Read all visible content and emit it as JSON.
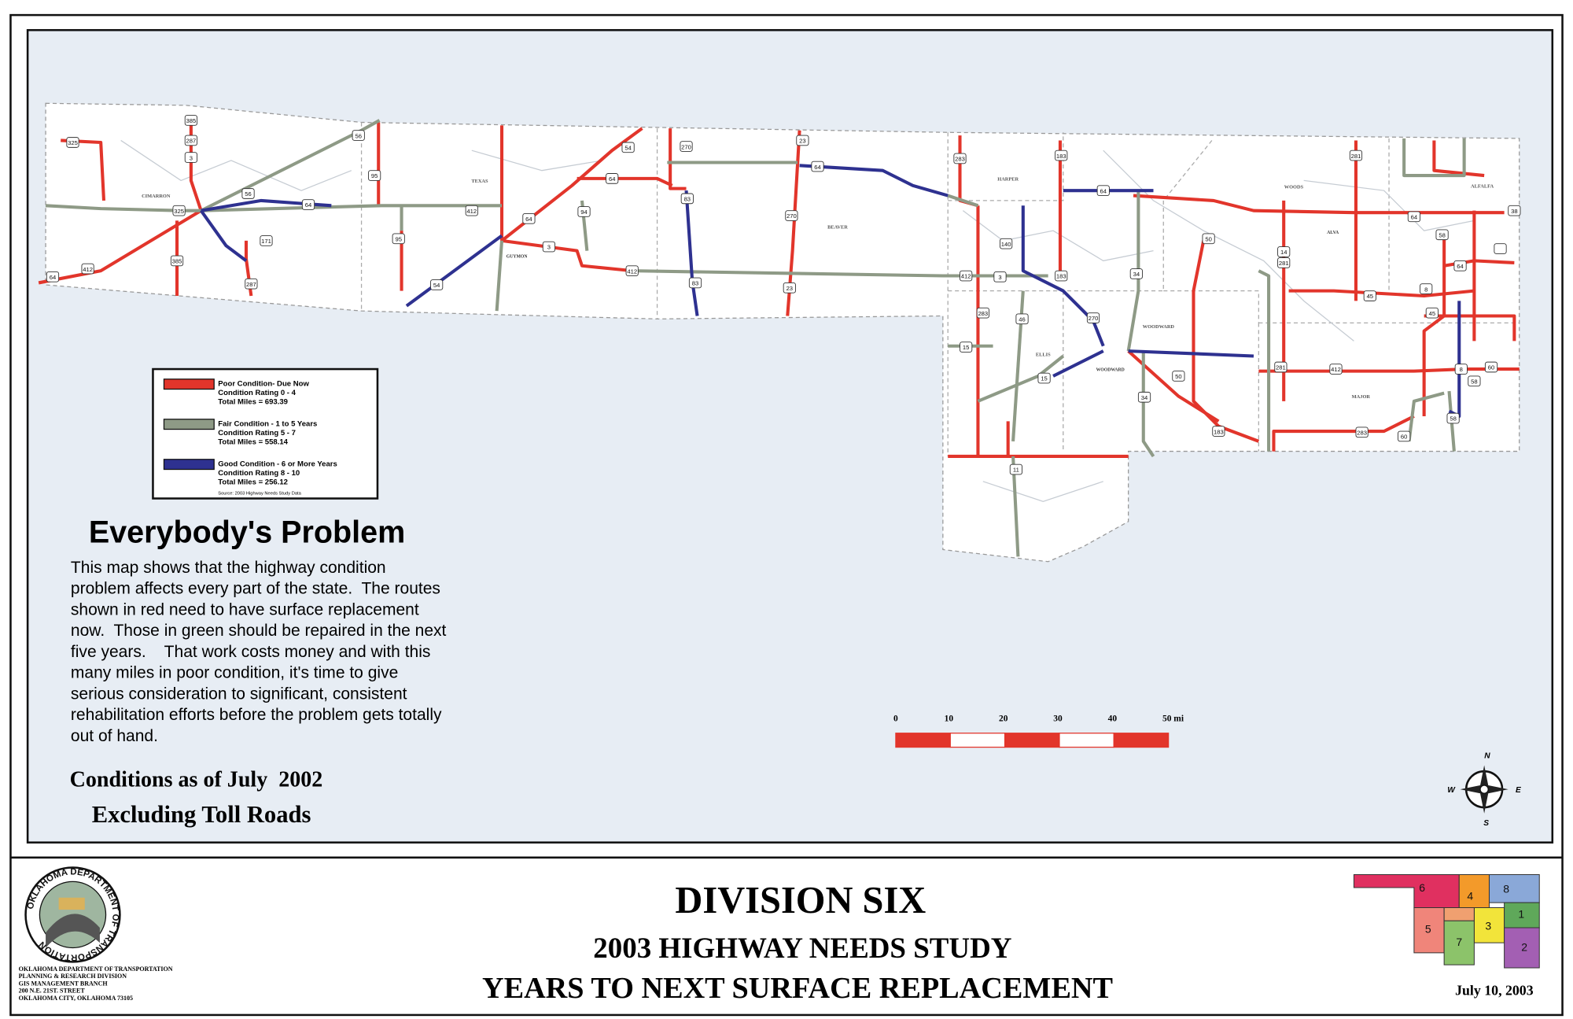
{
  "map": {
    "counties": [
      "CIMARRON",
      "TEXAS",
      "BEAVER",
      "HARPER",
      "WOODS",
      "ALFALFA",
      "ELLIS",
      "WOODWARD",
      "MAJOR"
    ],
    "towns": [
      "GUYMON",
      "ALVA",
      "WOODWARD"
    ],
    "shields": [
      "385",
      "287",
      "3",
      "56",
      "95",
      "64",
      "412",
      "56",
      "171",
      "385",
      "287",
      "325",
      "64",
      "412",
      "325",
      "95",
      "54",
      "64",
      "3",
      "94",
      "64",
      "54",
      "270",
      "83",
      "83",
      "412",
      "270",
      "23",
      "64",
      "23",
      "283",
      "183",
      "64",
      "412",
      "3",
      "140",
      "283",
      "15",
      "46",
      "183",
      "270",
      "34",
      "15",
      "50",
      "50",
      "34",
      "183",
      "14",
      "281",
      "281",
      "64",
      "58",
      "64",
      "8",
      "45",
      "45",
      "281",
      "412",
      "60",
      "58",
      "8",
      "58",
      "60",
      "283",
      "11",
      "38"
    ]
  },
  "legend": {
    "items": [
      {
        "label": "Poor Condition- Due Now",
        "rating": "Condition Rating 0 - 4",
        "miles": "Total Miles = 693.39",
        "color": "#e2352b"
      },
      {
        "label": "Fair Condition - 1 to 5 Years",
        "rating": "Condition Rating 5 - 7",
        "miles": "Total Miles = 558.14",
        "color": "#8e9a86"
      },
      {
        "label": "Good Condition - 6 or More Years",
        "rating": "Condition Rating 8 - 10",
        "miles": "Total Miles = 256.12",
        "color": "#2e3190"
      }
    ],
    "source": "Source: 2003 Highway Needs Study Data"
  },
  "note": {
    "title": "Everybody's Problem",
    "lines": [
      "This map shows that the highway condition",
      "problem affects every part of the state.  The routes",
      "shown in red need to have surface replacement",
      "now.  Those in green should be repaired in the next",
      "five years.    That work costs money and with this",
      "many miles in poor condition, it's time to give",
      "serious consideration to significant, consistent",
      "rehabilitation efforts before the problem gets totally",
      "out of hand."
    ]
  },
  "conditions": [
    "Conditions as of July  2002",
    "Excluding Toll Roads"
  ],
  "scale": {
    "labels": [
      "0",
      "10",
      "20",
      "30",
      "40",
      "50 mi"
    ]
  },
  "compass": {
    "n": "N",
    "s": "S",
    "e": "E",
    "w": "W"
  },
  "footer": {
    "logo_text": "OKLAHOMA DEPARTMENT OF TRANSPORTATION",
    "address": [
      "OKLAHOMA DEPARTMENT OF TRANSPORTATION",
      "PLANNING & RESEARCH DIVISION",
      "GIS MANAGEMENT BRANCH",
      "200 N.E. 21ST. STREET",
      "OKLAHOMA CITY, OKLAHOMA 73105"
    ],
    "title": "DIVISION SIX",
    "subtitle": "2003 HIGHWAY NEEDS STUDY",
    "subtitle2": "YEARS TO NEXT SURFACE REPLACEMENT",
    "date": "July 10, 2003",
    "divisions": [
      "6",
      "4",
      "8",
      "5",
      "3",
      "7",
      "2",
      "1"
    ]
  }
}
